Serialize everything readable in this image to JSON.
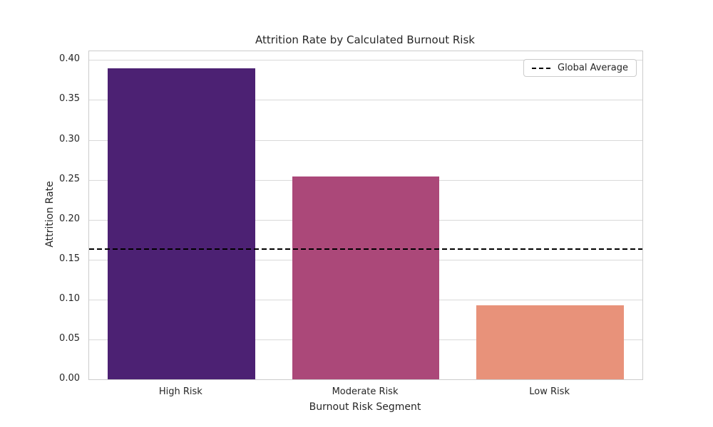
{
  "chart_data": {
    "type": "bar",
    "title": "Attrition Rate by Calculated Burnout Risk",
    "xlabel": "Burnout Risk Segment",
    "ylabel": "Attrition Rate",
    "categories": [
      "High Risk",
      "Moderate Risk",
      "Low Risk"
    ],
    "values": [
      0.39,
      0.254,
      0.093
    ],
    "bar_colors": [
      "#4c2173",
      "#ab4879",
      "#e8927a"
    ],
    "ylim": [
      0,
      0.411
    ],
    "yticks": [
      0.0,
      0.05,
      0.1,
      0.15,
      0.2,
      0.25,
      0.3,
      0.35,
      0.4
    ],
    "ytick_labels": [
      "0.00",
      "0.05",
      "0.10",
      "0.15",
      "0.20",
      "0.25",
      "0.30",
      "0.35",
      "0.40"
    ],
    "grid": true,
    "bar_width_fraction": 0.8,
    "reference_line": {
      "value": 0.163,
      "color": "#000000",
      "style": "dashed"
    },
    "legend": {
      "position": "upper right",
      "entries": [
        {
          "label": "Global Average",
          "marker": "dashed-line",
          "color": "#000000"
        }
      ]
    }
  },
  "colors": {
    "background": "#ffffff",
    "grid": "#d9d9d9",
    "spine": "#cccccc",
    "text": "#262626"
  }
}
